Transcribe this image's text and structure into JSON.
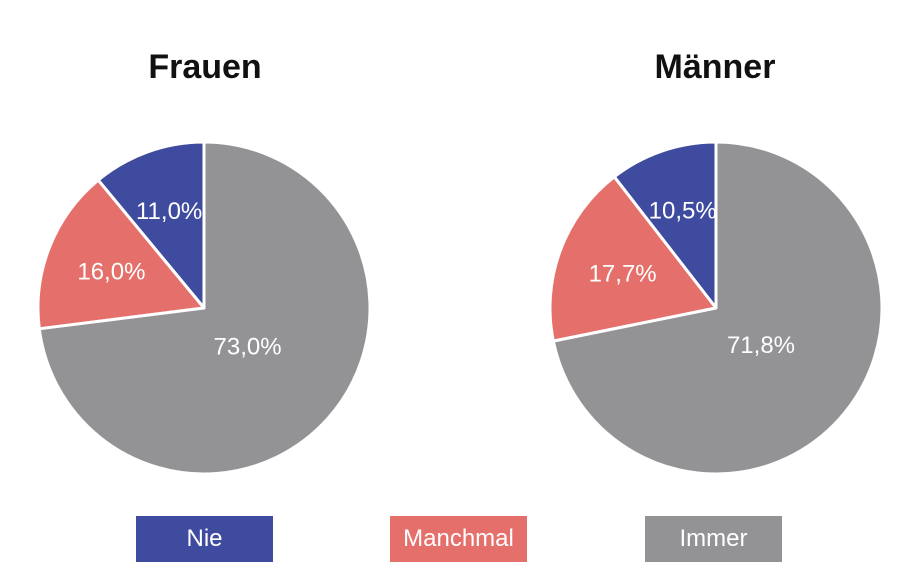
{
  "chart_data": [
    {
      "type": "pie",
      "title": "Frauen",
      "categories": [
        "Nie",
        "Manchmal",
        "Immer"
      ],
      "values": [
        11.0,
        16.0,
        73.0
      ],
      "labels": [
        "11,0%",
        "16,0%",
        "73,0%"
      ]
    },
    {
      "type": "pie",
      "title": "Männer",
      "categories": [
        "Nie",
        "Manchmal",
        "Immer"
      ],
      "values": [
        10.5,
        17.7,
        71.8
      ],
      "labels": [
        "10,5%",
        "17,7%",
        "71,8%"
      ]
    }
  ],
  "legend": [
    {
      "label": "Nie",
      "color": "#3f4b9f"
    },
    {
      "label": "Manchmal",
      "color": "#e5706b"
    },
    {
      "label": "Immer",
      "color": "#939396"
    }
  ]
}
